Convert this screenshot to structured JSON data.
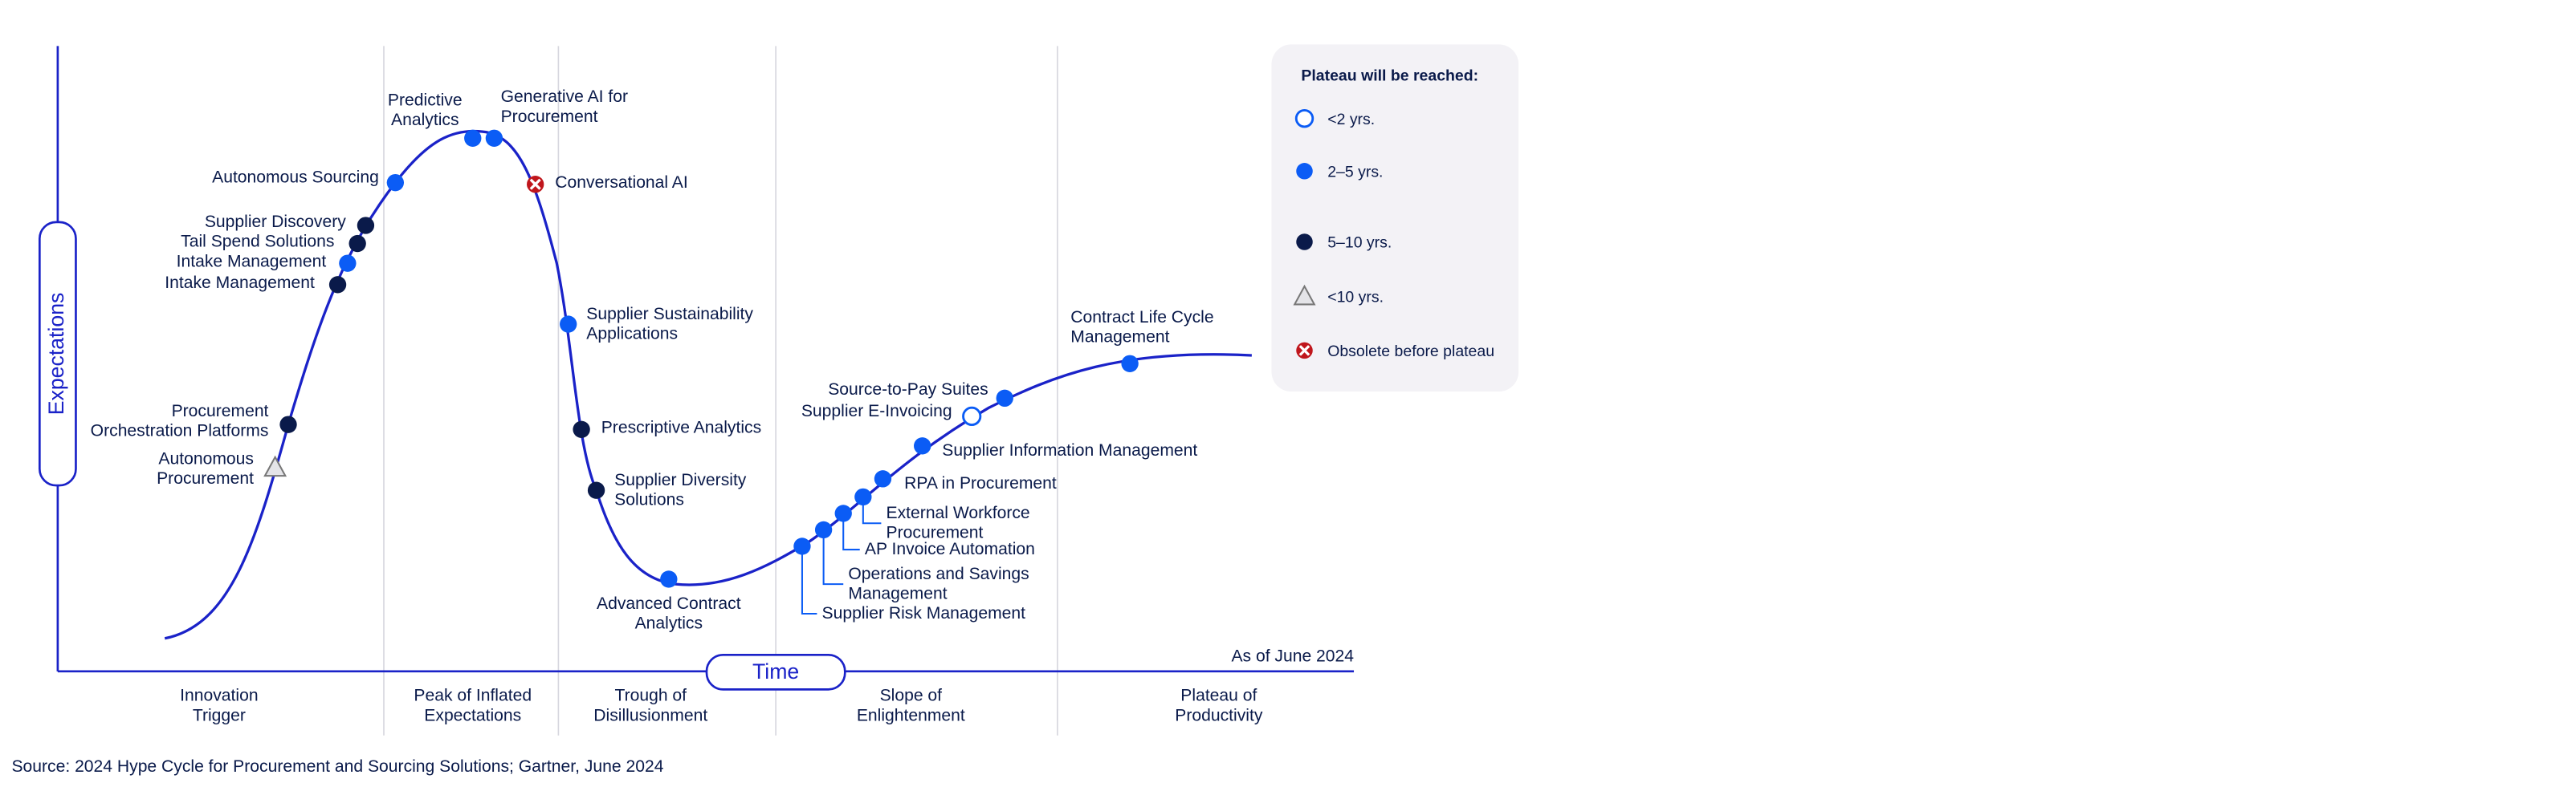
{
  "axes": {
    "y_label": "Expectations",
    "x_label": "Time",
    "as_of": "As of June 2024"
  },
  "phases": [
    [
      "Innovation",
      "Trigger"
    ],
    [
      "Peak of Inflated",
      "Expectations"
    ],
    [
      "Trough of",
      "Disillusionment"
    ],
    [
      "Slope of",
      "Enlightenment"
    ],
    [
      "Plateau of",
      "Productivity"
    ]
  ],
  "legend": {
    "title": "Plateau will be reached:",
    "entries": [
      {
        "label": "<2 yrs.",
        "marker": "open"
      },
      {
        "label": "2–5 yrs.",
        "marker": "blue"
      },
      {
        "label": "5–10 yrs.",
        "marker": "navy"
      },
      {
        "label": "<10 yrs.",
        "marker": "triangle"
      },
      {
        "label": "Obsolete before plateau",
        "marker": "obsolete"
      }
    ]
  },
  "items": [
    {
      "label": [
        "Autonomous",
        "Procurement"
      ],
      "marker": "triangle"
    },
    {
      "label": [
        "Procurement",
        "Orchestration Platforms"
      ],
      "marker": "navy"
    },
    {
      "label": [
        "Intake Management"
      ],
      "marker": "navy"
    },
    {
      "label": [
        "Intake Management"
      ],
      "marker": "blue"
    },
    {
      "label": [
        "Tail Spend Solutions"
      ],
      "marker": "navy"
    },
    {
      "label": [
        "Supplier Discovery"
      ],
      "marker": "navy"
    },
    {
      "label": [
        "Autonomous Sourcing"
      ],
      "marker": "blue"
    },
    {
      "label": [
        "Predictive",
        "Analytics"
      ],
      "marker": "blue"
    },
    {
      "label": [
        "Generative AI for",
        "Procurement"
      ],
      "marker": "blue"
    },
    {
      "label": [
        "Conversational AI"
      ],
      "marker": "obsolete"
    },
    {
      "label": [
        "Supplier Sustainability",
        "Applications"
      ],
      "marker": "blue"
    },
    {
      "label": [
        "Prescriptive Analytics"
      ],
      "marker": "navy"
    },
    {
      "label": [
        "Supplier Diversity",
        "Solutions"
      ],
      "marker": "navy"
    },
    {
      "label": [
        "Advanced Contract",
        "Analytics"
      ],
      "marker": "blue"
    },
    {
      "label": [
        "Supplier Risk Management"
      ],
      "marker": "blue"
    },
    {
      "label": [
        "Operations and Savings",
        "Management"
      ],
      "marker": "blue"
    },
    {
      "label": [
        "AP Invoice Automation"
      ],
      "marker": "blue"
    },
    {
      "label": [
        "External Workforce",
        "Procurement"
      ],
      "marker": "blue"
    },
    {
      "label": [
        "RPA in Procurement"
      ],
      "marker": "blue"
    },
    {
      "label": [
        "Supplier Information Management"
      ],
      "marker": "blue"
    },
    {
      "label": [
        "Supplier E-Invoicing"
      ],
      "marker": "open"
    },
    {
      "label": [
        "Source-to-Pay Suites"
      ],
      "marker": "blue"
    },
    {
      "label": [
        "Contract Life Cycle",
        "Management"
      ],
      "marker": "blue"
    }
  ],
  "source": "Source: 2024 Hype Cycle for Procurement and Sourcing Solutions; Gartner, June 2024"
}
